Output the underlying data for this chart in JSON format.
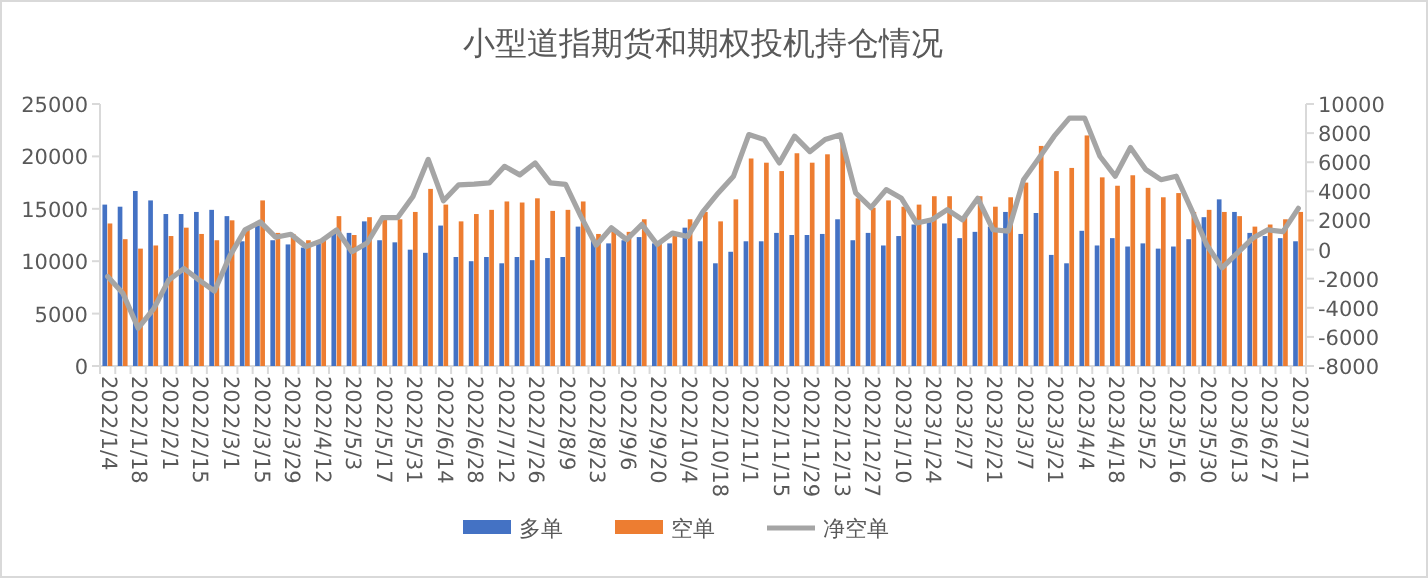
{
  "chart_data": {
    "type": "bar",
    "title": "小型道指期货和期权投机持仓情况",
    "categories": [
      "2022/1/4",
      null,
      "2022/1/18",
      null,
      "2022/2/1",
      null,
      "2022/2/15",
      null,
      "2022/3/1",
      null,
      "2022/3/15",
      null,
      "2022/3/29",
      null,
      "2022/4/12",
      null,
      "2022/5/3",
      null,
      "2022/5/17",
      null,
      "2022/5/31",
      null,
      "2022/6/14",
      null,
      "2022/6/28",
      null,
      "2022/7/12",
      null,
      "2022/7/26",
      null,
      "2022/8/9",
      null,
      "2022/8/23",
      null,
      "2022/9/6",
      null,
      "2022/9/20",
      null,
      "2022/10/4",
      null,
      "2022/10/18",
      null,
      "2022/11/1",
      null,
      "2022/11/15",
      null,
      "2022/11/29",
      null,
      "2022/12/13",
      null,
      "2022/12/27",
      null,
      "2023/1/10",
      null,
      "2023/1/24",
      null,
      "2023/2/7",
      null,
      "2023/2/21",
      null,
      "2023/3/7",
      null,
      "2023/3/21",
      null,
      "2023/4/4",
      null,
      "2023/4/18",
      null,
      "2023/5/2",
      null,
      "2023/5/16",
      null,
      "2023/5/30",
      null,
      "2023/6/13",
      null,
      "2023/6/27",
      null,
      "2023/7/11"
    ],
    "series": [
      {
        "name": "多单",
        "color": "#4472c4",
        "values": [
          15400,
          15200,
          16700,
          15800,
          14500,
          14500,
          14700,
          14900,
          14300,
          11900,
          13400,
          12000,
          11600,
          11300,
          11700,
          12600,
          12700,
          13800,
          12000,
          11800,
          11100,
          10800,
          13400,
          10400,
          10000,
          10400,
          9800,
          10400,
          10100,
          10300,
          10400,
          13300,
          12000,
          11700,
          12000,
          12300,
          11700,
          11700,
          13200,
          11900,
          9800,
          10900,
          11900,
          11900,
          12700,
          12500,
          12500,
          12600,
          14000,
          12000,
          12700,
          11500,
          12400,
          13500,
          13800,
          13600,
          12200,
          12800,
          13300,
          14700,
          12600,
          14600,
          10600,
          9800,
          12900,
          11500,
          12200,
          11400,
          11700,
          11200,
          11400,
          12100,
          14200,
          15900,
          14700,
          12700,
          12400,
          12200,
          11900
        ]
      },
      {
        "name": "空单",
        "color": "#ed7d31",
        "values": [
          13600,
          12100,
          11200,
          11500,
          12400,
          13200,
          12600,
          12000,
          13900,
          13000,
          15800,
          12700,
          12600,
          12000,
          12000,
          14300,
          12500,
          14200,
          14200,
          14000,
          14700,
          16900,
          15400,
          13800,
          14500,
          14900,
          15700,
          15600,
          16000,
          14800,
          14900,
          15700,
          12600,
          12800,
          12800,
          14000,
          11700,
          12400,
          14000,
          14700,
          13800,
          15900,
          19800,
          19400,
          18600,
          20300,
          19400,
          20200,
          21300,
          16000,
          15100,
          15800,
          15200,
          15400,
          16200,
          16200,
          14300,
          16200,
          15200,
          16100,
          17500,
          21000,
          18600,
          18900,
          22000,
          18000,
          17200,
          18200,
          17000,
          16100,
          16500,
          14700,
          14900,
          14700,
          14300,
          13300,
          13500,
          14000,
          14700
        ]
      },
      {
        "name": "净空单",
        "color": "#a5a5a5",
        "type": "line",
        "axis": "y2",
        "values": [
          -1850,
          -3000,
          -5400,
          -4100,
          -2100,
          -1300,
          -2100,
          -2850,
          -450,
          1350,
          1900,
          850,
          1050,
          200,
          600,
          1350,
          -150,
          450,
          2200,
          2200,
          3650,
          6200,
          3350,
          4450,
          4500,
          4580,
          5720,
          5130,
          5950,
          4580,
          4480,
          2280,
          300,
          1500,
          680,
          1730,
          350,
          1130,
          900,
          2600,
          3890,
          5040,
          7900,
          7560,
          5950,
          7790,
          6730,
          7560,
          7880,
          3890,
          2880,
          4120,
          3520,
          1820,
          2050,
          2740,
          2050,
          3520,
          1360,
          1270,
          4800,
          6280,
          7790,
          9030,
          9030,
          6410,
          5040,
          7010,
          5500,
          4800,
          5040,
          2740,
          310,
          -1250,
          -240,
          770,
          1360,
          1230,
          2830
        ]
      }
    ],
    "ylim": [
      0,
      25000
    ],
    "yticks": [
      0,
      5000,
      10000,
      15000,
      20000,
      25000
    ],
    "y2lim": [
      -8000,
      10000
    ],
    "y2ticks": [
      -8000,
      -6000,
      -4000,
      -2000,
      0,
      2000,
      4000,
      6000,
      8000,
      10000
    ],
    "legend": "bottom"
  }
}
